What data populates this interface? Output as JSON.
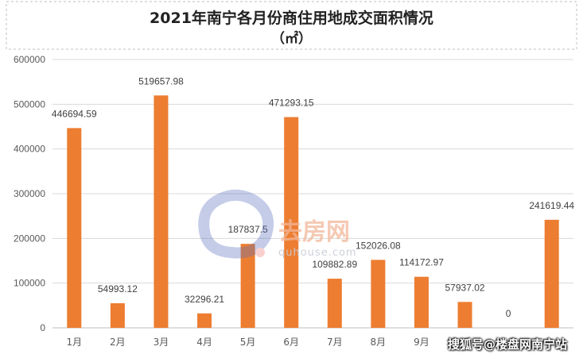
{
  "chart_data": {
    "type": "bar",
    "title": "2021年南宁各月份商住用地成交面积情况",
    "subtitle": "（㎡）",
    "categories": [
      "1月",
      "2月",
      "3月",
      "4月",
      "5月",
      "6月",
      "7月",
      "8月",
      "9月",
      "",
      "",
      ""
    ],
    "values": [
      446694.59,
      54993.12,
      519657.98,
      32296.21,
      187837.5,
      471293.15,
      109882.89,
      152026.08,
      114172.97,
      57937.02,
      0,
      241619.44
    ],
    "data_labels": [
      "446694.59",
      "54993.12",
      "519657.98",
      "32296.21",
      "187837.5",
      "471293.15",
      "109882.89",
      "152026.08",
      "114172.97",
      "57937.02",
      "0",
      "241619.44"
    ],
    "ylim": [
      0,
      600000
    ],
    "yticks": [
      0,
      100000,
      200000,
      300000,
      400000,
      500000,
      600000
    ],
    "ytick_labels": [
      "0",
      "100000",
      "200000",
      "300000",
      "400000",
      "500000",
      "600000"
    ],
    "xlabel": "",
    "ylabel": "",
    "grid": true,
    "legend": "none",
    "bar_color": "#ED7D31"
  },
  "watermark": {
    "text": "搜狐号@楼盘网南宁站",
    "brand": "去房网",
    "url": "quhouse.com"
  }
}
